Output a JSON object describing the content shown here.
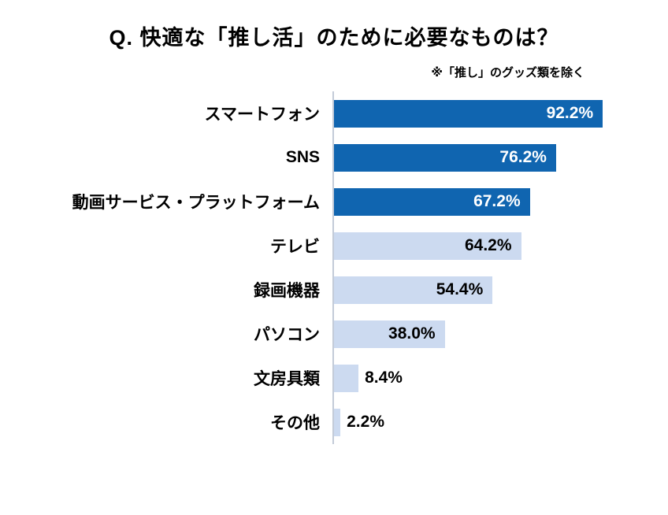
{
  "title": "Q. 快適な「推し活」のために必要なものは？",
  "note": "※「推し」のグッズ類を除く",
  "colors": {
    "dark": "#1065b0",
    "light": "#ccdaf0",
    "axis_line": "#c3cbd8",
    "value_on_dark": "#ffffff",
    "value_on_light": "#000000"
  },
  "chart_data": {
    "type": "bar",
    "orientation": "horizontal",
    "title": "Q. 快適な「推し活」のために必要なものは？",
    "subtitle": "※「推し」のグッズ類を除く",
    "xlabel": "",
    "ylabel": "",
    "xlim": [
      0,
      100
    ],
    "grid": false,
    "legend": false,
    "categories": [
      "スマートフォン",
      "SNS",
      "動画サービス・プラットフォーム",
      "テレビ",
      "録画機器",
      "パソコン",
      "文房具類",
      "その他"
    ],
    "values": [
      92.2,
      76.2,
      67.2,
      64.2,
      54.4,
      38.0,
      8.4,
      2.2
    ],
    "bars": [
      {
        "label": "スマートフォン",
        "value": 92.2,
        "display": "92.2%",
        "color": "dark",
        "label_position": "inside",
        "label_color": "white"
      },
      {
        "label": "SNS",
        "value": 76.2,
        "display": "76.2%",
        "color": "dark",
        "label_position": "inside",
        "label_color": "white"
      },
      {
        "label": "動画サービス・プラットフォーム",
        "value": 67.2,
        "display": "67.2%",
        "color": "dark",
        "label_position": "inside",
        "label_color": "white"
      },
      {
        "label": "テレビ",
        "value": 64.2,
        "display": "64.2%",
        "color": "light",
        "label_position": "inside",
        "label_color": "black"
      },
      {
        "label": "録画機器",
        "value": 54.4,
        "display": "54.4%",
        "color": "light",
        "label_position": "inside",
        "label_color": "black"
      },
      {
        "label": "パソコン",
        "value": 38.0,
        "display": "38.0%",
        "color": "light",
        "label_position": "inside",
        "label_color": "black"
      },
      {
        "label": "文房具類",
        "value": 8.4,
        "display": "8.4%",
        "color": "light",
        "label_position": "outside",
        "label_color": "black"
      },
      {
        "label": "その他",
        "value": 2.2,
        "display": "2.2%",
        "color": "light",
        "label_position": "outside",
        "label_color": "black"
      }
    ]
  }
}
